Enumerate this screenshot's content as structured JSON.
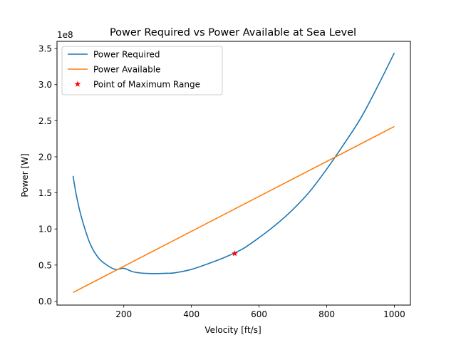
{
  "chart_data": {
    "type": "line",
    "title": "Power Required vs Power Available at Sea Level",
    "xlabel": "Velocity [ft/s]",
    "ylabel": "Power [W]",
    "y_offset_label": "1e8",
    "xlim": [
      2.5,
      1047.5
    ],
    "ylim": [
      -0.0545,
      3.6
    ],
    "xticks": [
      200,
      400,
      600,
      800,
      1000
    ],
    "xtick_labels": [
      "200",
      "400",
      "600",
      "800",
      "1000"
    ],
    "yticks": [
      0,
      0.5,
      1.0,
      1.5,
      2.0,
      2.5,
      3.0,
      3.5
    ],
    "ytick_labels": [
      "0.0",
      "0.5",
      "1.0",
      "1.5",
      "2.0",
      "2.5",
      "3.0",
      "3.5"
    ],
    "grid": false,
    "legend_position": "top-left",
    "series": [
      {
        "name": "Power Required",
        "color": "#1f77b4",
        "x": [
          50,
          60,
          75,
          100,
          125,
          150,
          175,
          200,
          225,
          250,
          275,
          300,
          325,
          350,
          400,
          450,
          500,
          550,
          600,
          650,
          700,
          750,
          800,
          850,
          900,
          950,
          1000
        ],
        "y": [
          1.735,
          1.46,
          1.16,
          0.8,
          0.6,
          0.5,
          0.44,
          0.455,
          0.41,
          0.39,
          0.383,
          0.382,
          0.386,
          0.392,
          0.44,
          0.52,
          0.61,
          0.72,
          0.88,
          1.06,
          1.27,
          1.52,
          1.83,
          2.17,
          2.53,
          2.97,
          3.44
        ]
      },
      {
        "name": "Power Available",
        "color": "#ff7f0e",
        "x": [
          50,
          1000
        ],
        "y": [
          0.12,
          2.42
        ]
      }
    ],
    "markers": [
      {
        "name": "Point of Maximum Range",
        "color": "#ff0000",
        "marker": "star",
        "x": 528,
        "y": 0.66
      }
    ]
  }
}
